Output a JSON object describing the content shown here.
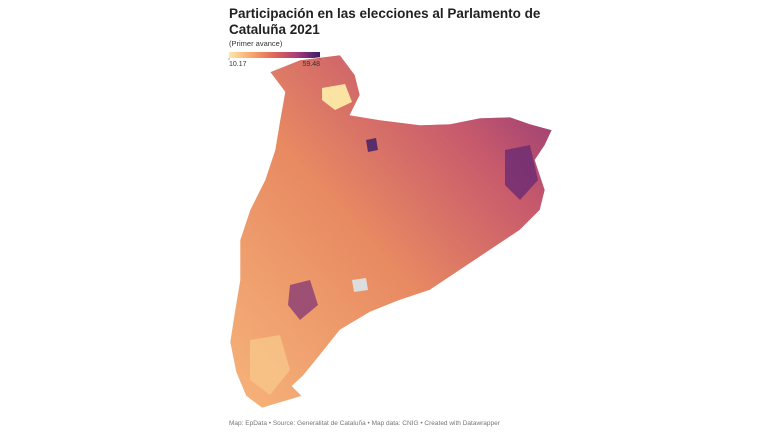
{
  "title": "Participación en las elecciones al Parlamento de Cataluña 2021",
  "subtitle": "(Primer avance)",
  "legend": {
    "min": 10.17,
    "max": 59.48,
    "colors": [
      "#fce8a8",
      "#f7a66a",
      "#e0655a",
      "#a73c7a",
      "#3b1b6b"
    ]
  },
  "footer": "Map: EpData • Source: Generalitat de Cataluña • Map data: CNIG • Created with Datawrapper"
}
